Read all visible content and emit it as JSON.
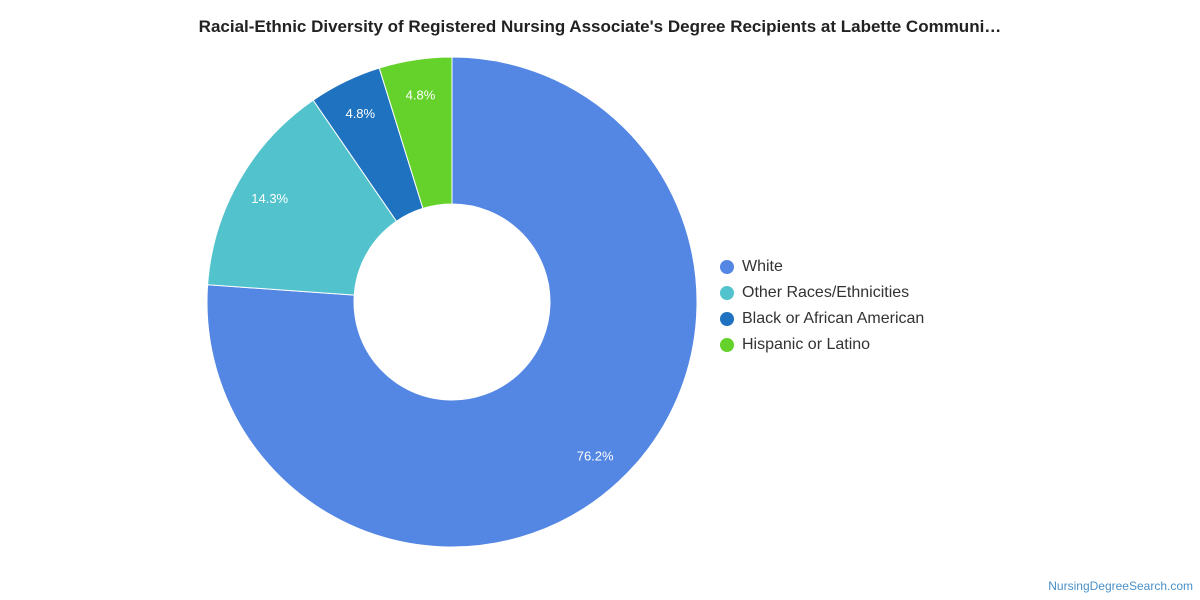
{
  "chart_data": {
    "type": "pie",
    "title": "Racial-Ethnic Diversity of Registered Nursing Associate's Degree Recipients at Labette Communi…",
    "donut": true,
    "slices": [
      {
        "label": "White",
        "value": 76.2,
        "display": "76.2%",
        "color": "#5486e3"
      },
      {
        "label": "Other Races/Ethnicities",
        "value": 14.3,
        "display": "14.3%",
        "color": "#52c2cc"
      },
      {
        "label": "Black or African American",
        "value": 4.8,
        "display": "4.8%",
        "color": "#1f72bf"
      },
      {
        "label": "Hispanic or Latino",
        "value": 4.8,
        "display": "4.8%",
        "color": "#64d22a"
      }
    ],
    "legend_position": "right"
  },
  "watermark": "NursingDegreeSearch.com"
}
